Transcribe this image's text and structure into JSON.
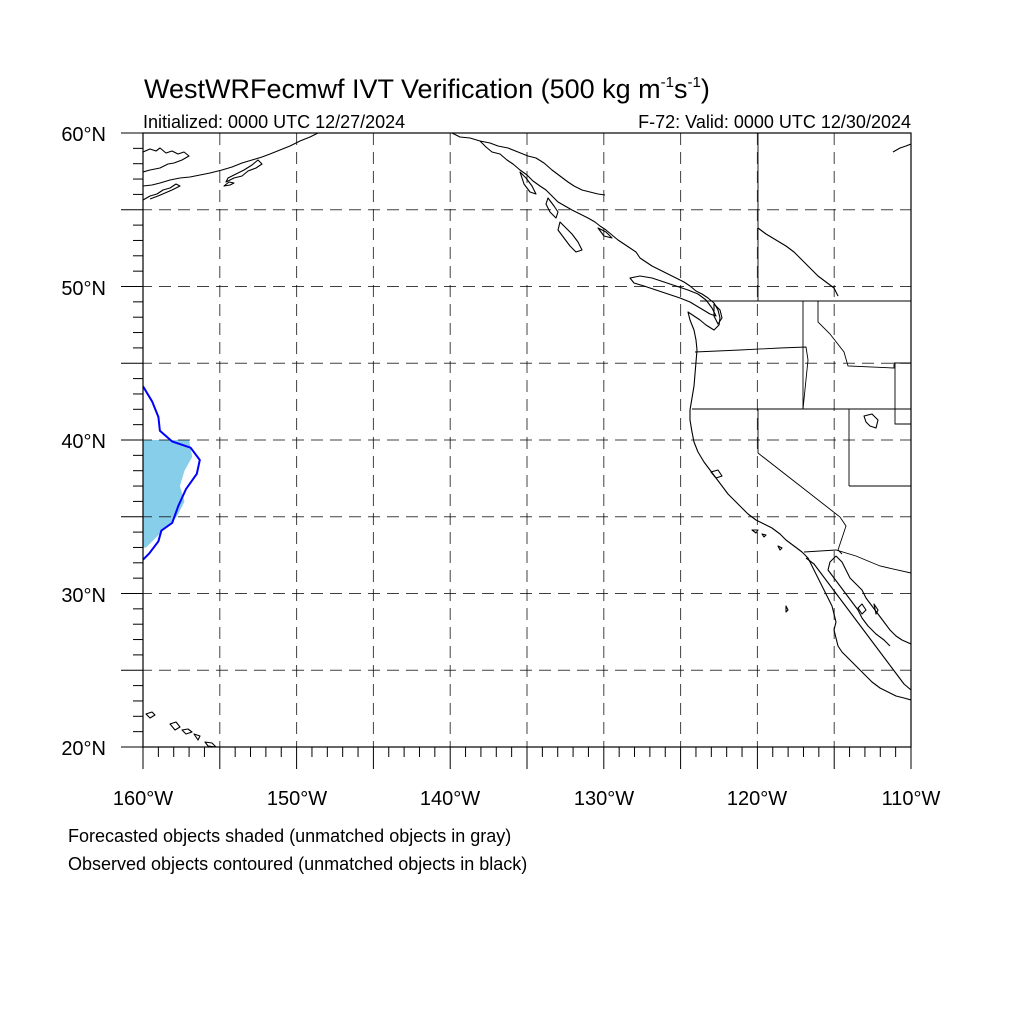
{
  "title": {
    "main": "WestWRFecmwf IVT Verification (500 kg m",
    "sup1": "-1",
    "mid": "s",
    "sup2": "-1",
    "end": ")"
  },
  "subtitle": {
    "left": "Initialized: 0000 UTC 12/27/2024",
    "right": "F-72: Valid: 0000 UTC 12/30/2024"
  },
  "axes": {
    "lat_labels": [
      "60°N",
      "50°N",
      "40°N",
      "30°N",
      "20°N"
    ],
    "lon_labels": [
      "160°W",
      "150°W",
      "140°W",
      "130°W",
      "120°W",
      "110°W"
    ],
    "lat_range": [
      20,
      60
    ],
    "lon_range": [
      -160,
      -110
    ],
    "gridlines": "dashed every 5 degrees"
  },
  "legend": {
    "line1": "Forecasted objects shaded (unmatched objects in gray)",
    "line2": "Observed objects contoured (unmatched objects in black)"
  },
  "colors": {
    "forecast_fill": "#87ceeb",
    "observed_contour": "#0000ff",
    "coastline": "#000000"
  },
  "objects": {
    "forecast_object": {
      "lon": [
        -160,
        -157,
        -156.8,
        -157.3,
        -157.6,
        -157.3,
        -157.8,
        -159.8,
        -160
      ],
      "lat": [
        40,
        40,
        38.9,
        38,
        37,
        36,
        35,
        33,
        33
      ]
    },
    "observed_object": {
      "lon": [
        -160,
        -159.4,
        -159,
        -158.9,
        -158.1,
        -156.9,
        -156.3,
        -156.5,
        -157.2,
        -157.7,
        -158.1,
        -158.8,
        -159,
        -159.6,
        -160
      ],
      "lat": [
        43.5,
        42.5,
        41.5,
        40.6,
        39.9,
        39.5,
        38.7,
        37.8,
        36.8,
        35.7,
        34.6,
        34.1,
        33.4,
        32.6,
        32.2
      ]
    }
  }
}
